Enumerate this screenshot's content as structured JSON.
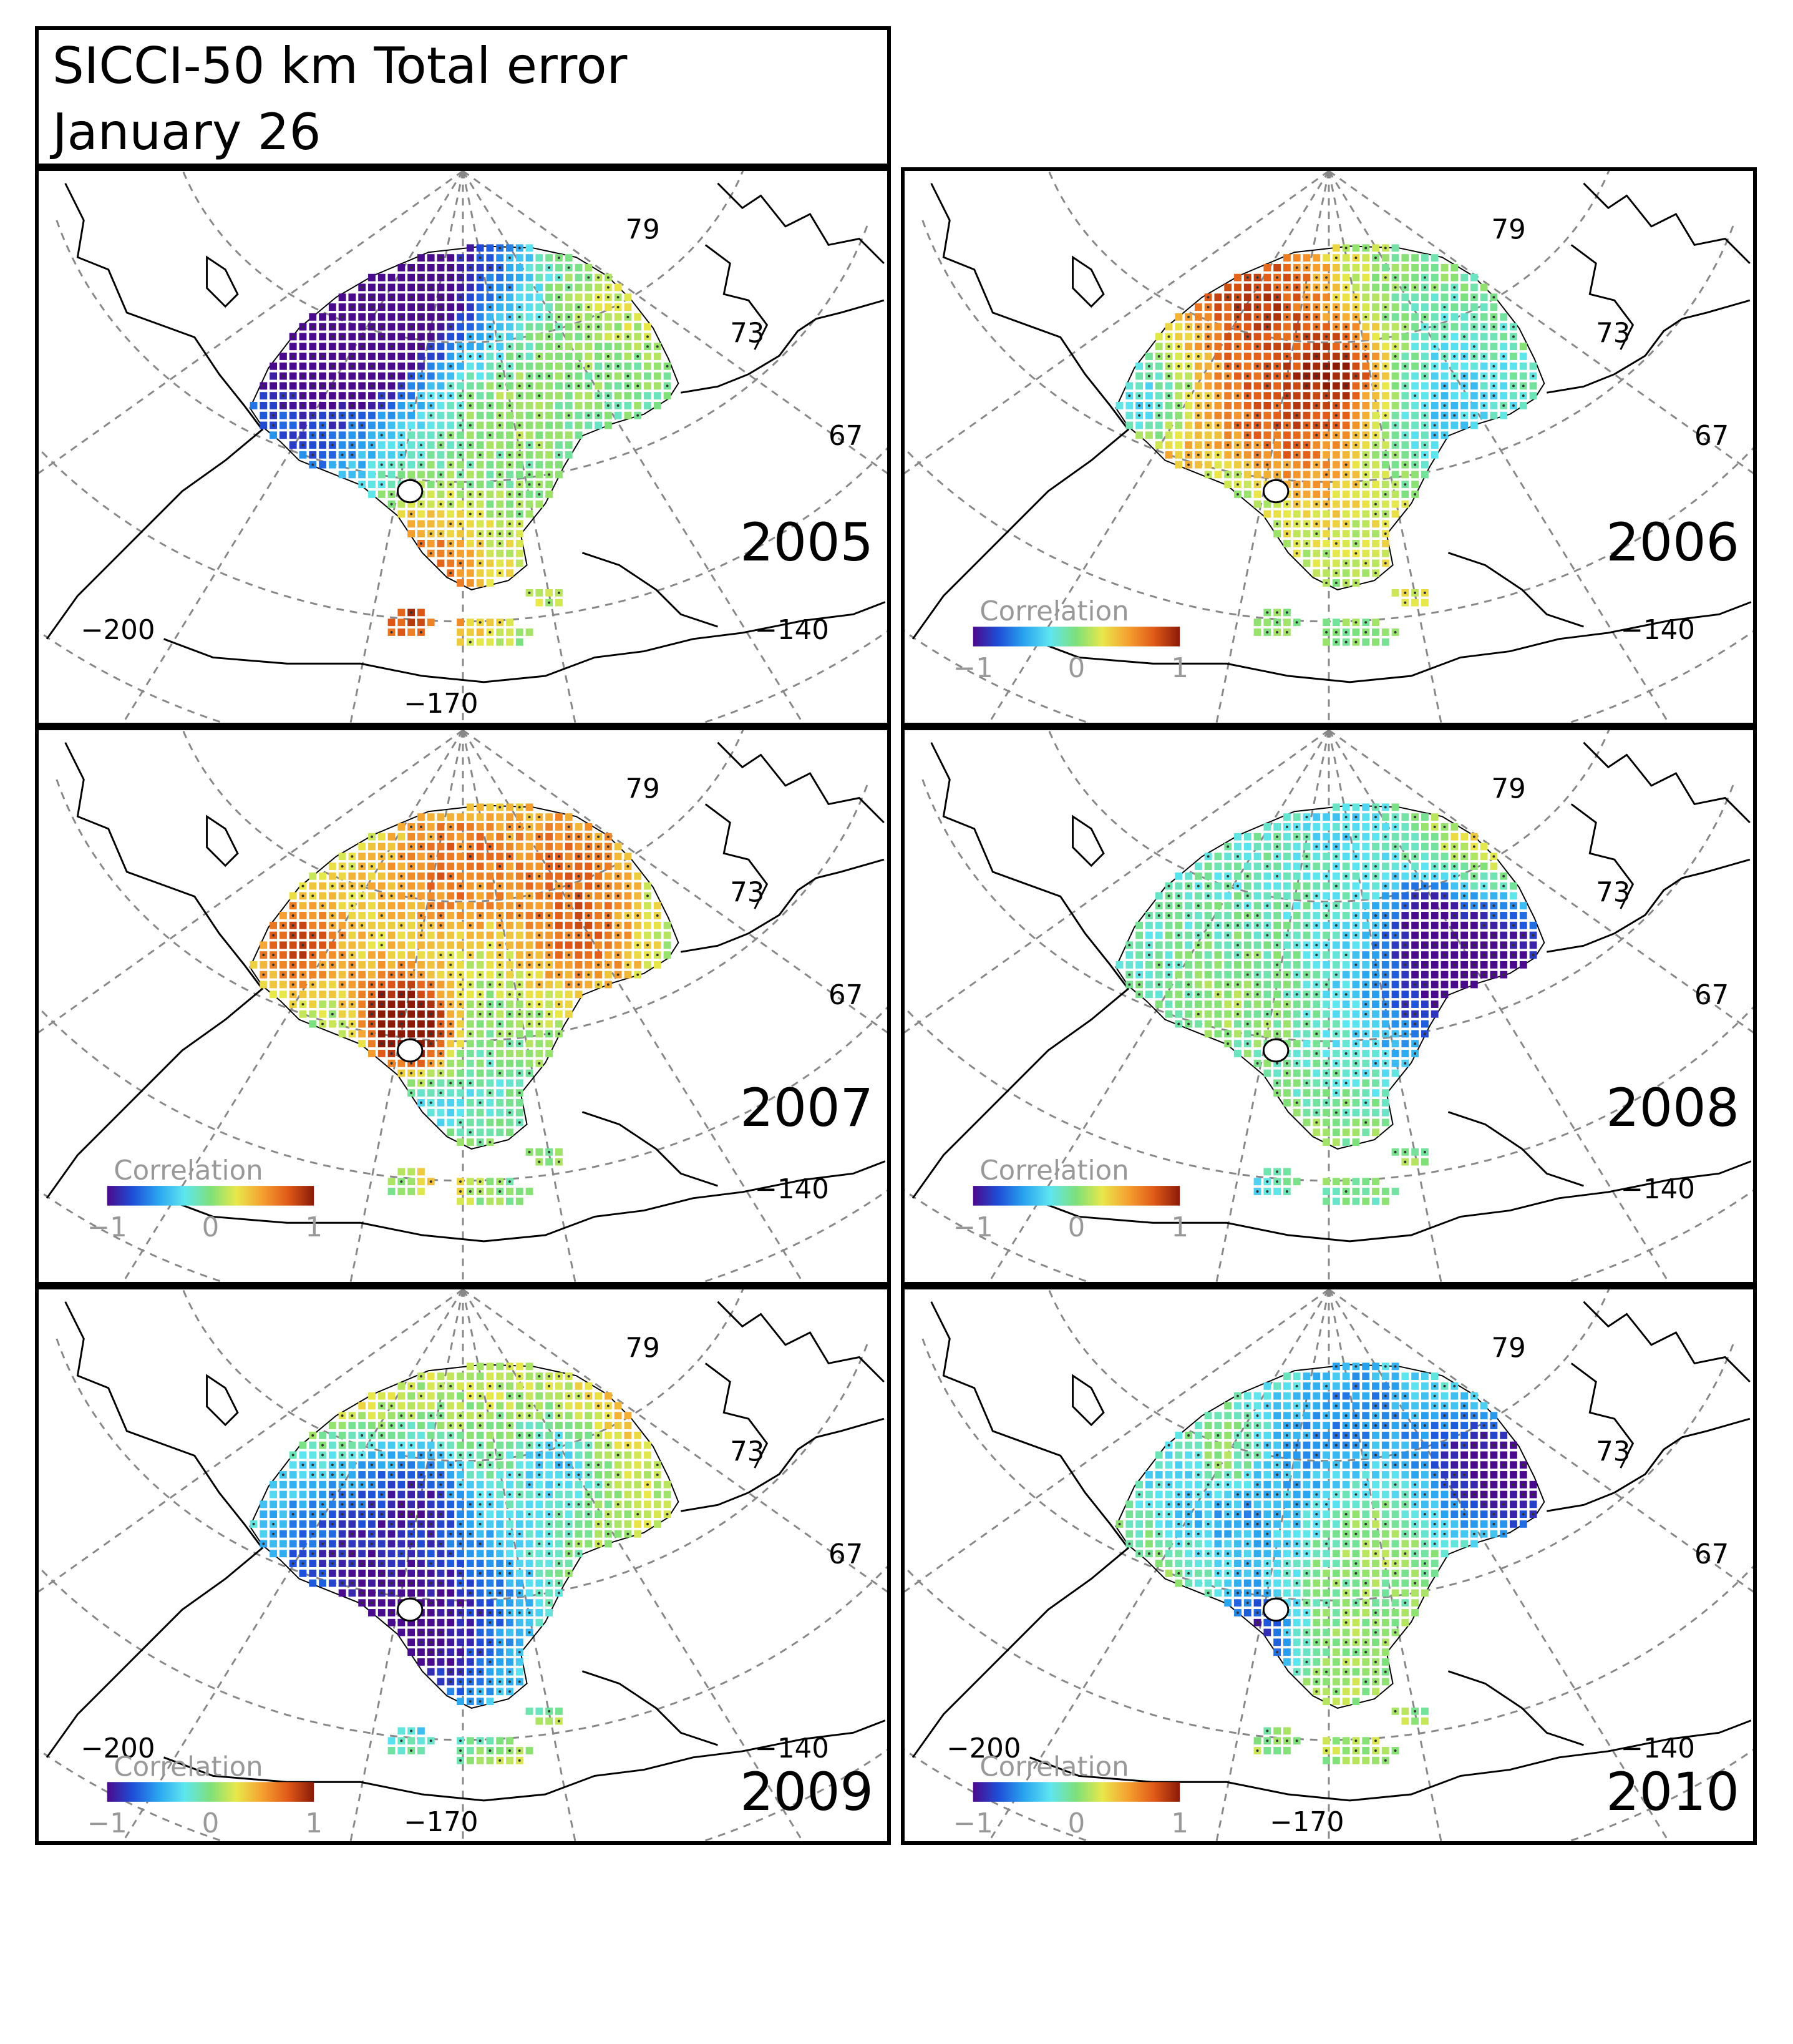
{
  "title": {
    "line1": "SICCI-50 km Total error",
    "line2": "January 26"
  },
  "colors": {
    "coast": "#000000",
    "graticule": "#888888",
    "colormap": [
      "#4a0a8c",
      "#1e4fd8",
      "#2aa6f0",
      "#5ee6f0",
      "#7ee07a",
      "#e8e84a",
      "#f5a030",
      "#e05a18",
      "#8a1a06"
    ]
  },
  "graticule": {
    "latitudes": [
      "79",
      "73",
      "67"
    ],
    "longitudes": [
      "−200",
      "−140",
      "−170"
    ]
  },
  "colorbar": {
    "label": "Correlation",
    "ticks": [
      "−1",
      "0",
      "1"
    ],
    "range": [
      -1,
      1
    ]
  },
  "panels": [
    {
      "year": "2005",
      "colorbar": false,
      "show_lon_170": true,
      "show_lon_200": true,
      "bias": -0.05,
      "seed": 11
    },
    {
      "year": "2006",
      "colorbar": true,
      "show_lon_170": false,
      "show_lon_200": false,
      "bias": 0.0,
      "seed": 23
    },
    {
      "year": "2007",
      "colorbar": true,
      "show_lon_170": false,
      "show_lon_200": false,
      "bias": 0.02,
      "seed": 37
    },
    {
      "year": "2008",
      "colorbar": true,
      "show_lon_170": false,
      "show_lon_200": false,
      "bias": -0.15,
      "seed": 41
    },
    {
      "year": "2009",
      "colorbar": true,
      "show_lon_170": true,
      "show_lon_200": true,
      "bias": 0.18,
      "seed": 53
    },
    {
      "year": "2010",
      "colorbar": true,
      "show_lon_170": true,
      "show_lon_200": true,
      "bias": 0.1,
      "seed": 67
    }
  ]
}
